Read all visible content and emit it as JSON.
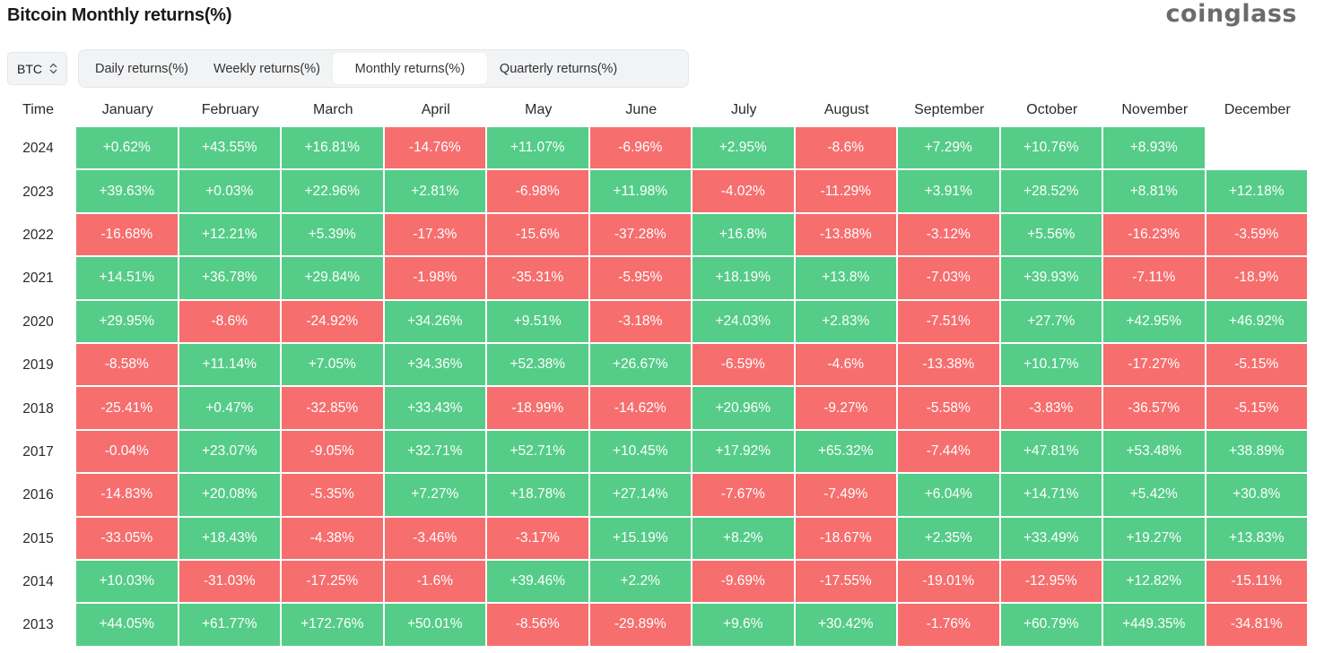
{
  "title": "Bitcoin Monthly returns(%)",
  "brand": "coinglass",
  "asset_select": {
    "value": "BTC"
  },
  "tabs": [
    {
      "label": "Daily returns(%)",
      "active": false
    },
    {
      "label": "Weekly returns(%)",
      "active": false
    },
    {
      "label": "Monthly returns(%)",
      "active": true
    },
    {
      "label": "Quarterly returns(%)",
      "active": false
    }
  ],
  "colors": {
    "positive": "#55cc88",
    "negative": "#f66e6e"
  },
  "table": {
    "time_header": "Time",
    "months": [
      "January",
      "February",
      "March",
      "April",
      "May",
      "June",
      "July",
      "August",
      "September",
      "October",
      "November",
      "December"
    ],
    "rows": [
      {
        "year": "2024",
        "values": [
          "+0.62%",
          "+43.55%",
          "+16.81%",
          "-14.76%",
          "+11.07%",
          "-6.96%",
          "+2.95%",
          "-8.6%",
          "+7.29%",
          "+10.76%",
          "+8.93%",
          ""
        ]
      },
      {
        "year": "2023",
        "values": [
          "+39.63%",
          "+0.03%",
          "+22.96%",
          "+2.81%",
          "-6.98%",
          "+11.98%",
          "-4.02%",
          "-11.29%",
          "+3.91%",
          "+28.52%",
          "+8.81%",
          "+12.18%"
        ]
      },
      {
        "year": "2022",
        "values": [
          "-16.68%",
          "+12.21%",
          "+5.39%",
          "-17.3%",
          "-15.6%",
          "-37.28%",
          "+16.8%",
          "-13.88%",
          "-3.12%",
          "+5.56%",
          "-16.23%",
          "-3.59%"
        ]
      },
      {
        "year": "2021",
        "values": [
          "+14.51%",
          "+36.78%",
          "+29.84%",
          "-1.98%",
          "-35.31%",
          "-5.95%",
          "+18.19%",
          "+13.8%",
          "-7.03%",
          "+39.93%",
          "-7.11%",
          "-18.9%"
        ]
      },
      {
        "year": "2020",
        "values": [
          "+29.95%",
          "-8.6%",
          "-24.92%",
          "+34.26%",
          "+9.51%",
          "-3.18%",
          "+24.03%",
          "+2.83%",
          "-7.51%",
          "+27.7%",
          "+42.95%",
          "+46.92%"
        ]
      },
      {
        "year": "2019",
        "values": [
          "-8.58%",
          "+11.14%",
          "+7.05%",
          "+34.36%",
          "+52.38%",
          "+26.67%",
          "-6.59%",
          "-4.6%",
          "-13.38%",
          "+10.17%",
          "-17.27%",
          "-5.15%"
        ]
      },
      {
        "year": "2018",
        "values": [
          "-25.41%",
          "+0.47%",
          "-32.85%",
          "+33.43%",
          "-18.99%",
          "-14.62%",
          "+20.96%",
          "-9.27%",
          "-5.58%",
          "-3.83%",
          "-36.57%",
          "-5.15%"
        ]
      },
      {
        "year": "2017",
        "values": [
          "-0.04%",
          "+23.07%",
          "-9.05%",
          "+32.71%",
          "+52.71%",
          "+10.45%",
          "+17.92%",
          "+65.32%",
          "-7.44%",
          "+47.81%",
          "+53.48%",
          "+38.89%"
        ]
      },
      {
        "year": "2016",
        "values": [
          "-14.83%",
          "+20.08%",
          "-5.35%",
          "+7.27%",
          "+18.78%",
          "+27.14%",
          "-7.67%",
          "-7.49%",
          "+6.04%",
          "+14.71%",
          "+5.42%",
          "+30.8%"
        ]
      },
      {
        "year": "2015",
        "values": [
          "-33.05%",
          "+18.43%",
          "-4.38%",
          "-3.46%",
          "-3.17%",
          "+15.19%",
          "+8.2%",
          "-18.67%",
          "+2.35%",
          "+33.49%",
          "+19.27%",
          "+13.83%"
        ]
      },
      {
        "year": "2014",
        "values": [
          "+10.03%",
          "-31.03%",
          "-17.25%",
          "-1.6%",
          "+39.46%",
          "+2.2%",
          "-9.69%",
          "-17.55%",
          "-19.01%",
          "-12.95%",
          "+12.82%",
          "-15.11%"
        ]
      },
      {
        "year": "2013",
        "values": [
          "+44.05%",
          "+61.77%",
          "+172.76%",
          "+50.01%",
          "-8.56%",
          "-29.89%",
          "+9.6%",
          "+30.42%",
          "-1.76%",
          "+60.79%",
          "+449.35%",
          "-34.81%"
        ]
      }
    ]
  }
}
